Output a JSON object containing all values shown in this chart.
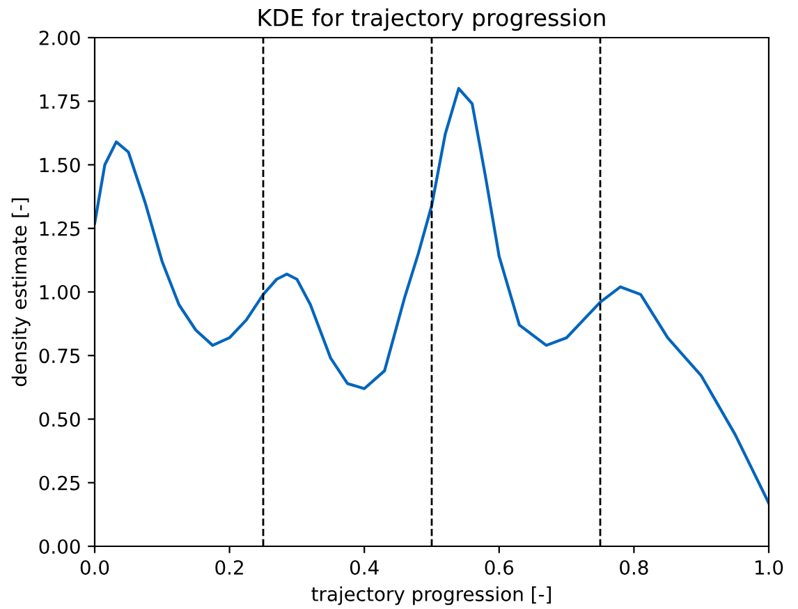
{
  "chart_data": {
    "type": "line",
    "title": "KDE for trajectory progression",
    "xlabel": "trajectory progression [-]",
    "ylabel": "density estimate [-]",
    "series": [
      {
        "color": "#0065bd",
        "x": [
          0.0,
          0.015,
          0.032,
          0.05,
          0.075,
          0.1,
          0.125,
          0.15,
          0.175,
          0.2,
          0.225,
          0.25,
          0.27,
          0.285,
          0.3,
          0.32,
          0.35,
          0.375,
          0.4,
          0.43,
          0.46,
          0.48,
          0.5,
          0.52,
          0.54,
          0.56,
          0.58,
          0.6,
          0.63,
          0.67,
          0.7,
          0.75,
          0.78,
          0.81,
          0.85,
          0.9,
          0.95,
          1.0
        ],
        "values": [
          1.27,
          1.5,
          1.59,
          1.55,
          1.35,
          1.12,
          0.95,
          0.85,
          0.79,
          0.82,
          0.89,
          0.99,
          1.05,
          1.07,
          1.05,
          0.95,
          0.74,
          0.64,
          0.62,
          0.69,
          0.98,
          1.15,
          1.34,
          1.62,
          1.8,
          1.74,
          1.45,
          1.14,
          0.87,
          0.79,
          0.82,
          0.96,
          1.02,
          0.99,
          0.82,
          0.67,
          0.44,
          0.17
        ]
      }
    ],
    "xlim": [
      0.0,
      1.0
    ],
    "ylim": [
      0.0,
      2.0
    ],
    "xticks": [
      {
        "value": 0.0,
        "label": "0.0"
      },
      0.2,
      0.4,
      0.6,
      0.8,
      {
        "value": 1.0,
        "label": "1.0"
      }
    ],
    "yticks": [
      {
        "value": 0.0,
        "label": "0.00"
      },
      0.25,
      {
        "value": 0.5,
        "label": "0.50"
      },
      0.75,
      {
        "value": 1.0,
        "label": "1.00"
      },
      1.25,
      {
        "value": 1.5,
        "label": "1.50"
      },
      1.75,
      {
        "value": 2.0,
        "label": "2.00"
      }
    ],
    "ref_lines": [
      {
        "axis": "x",
        "value": 0.25,
        "color": "#000000",
        "line_style": "dashed"
      },
      {
        "axis": "x",
        "value": 0.5,
        "color": "#000000",
        "line_style": "dashed"
      },
      {
        "axis": "x",
        "value": 0.75,
        "color": "#000000",
        "line_style": "dashed"
      }
    ]
  }
}
